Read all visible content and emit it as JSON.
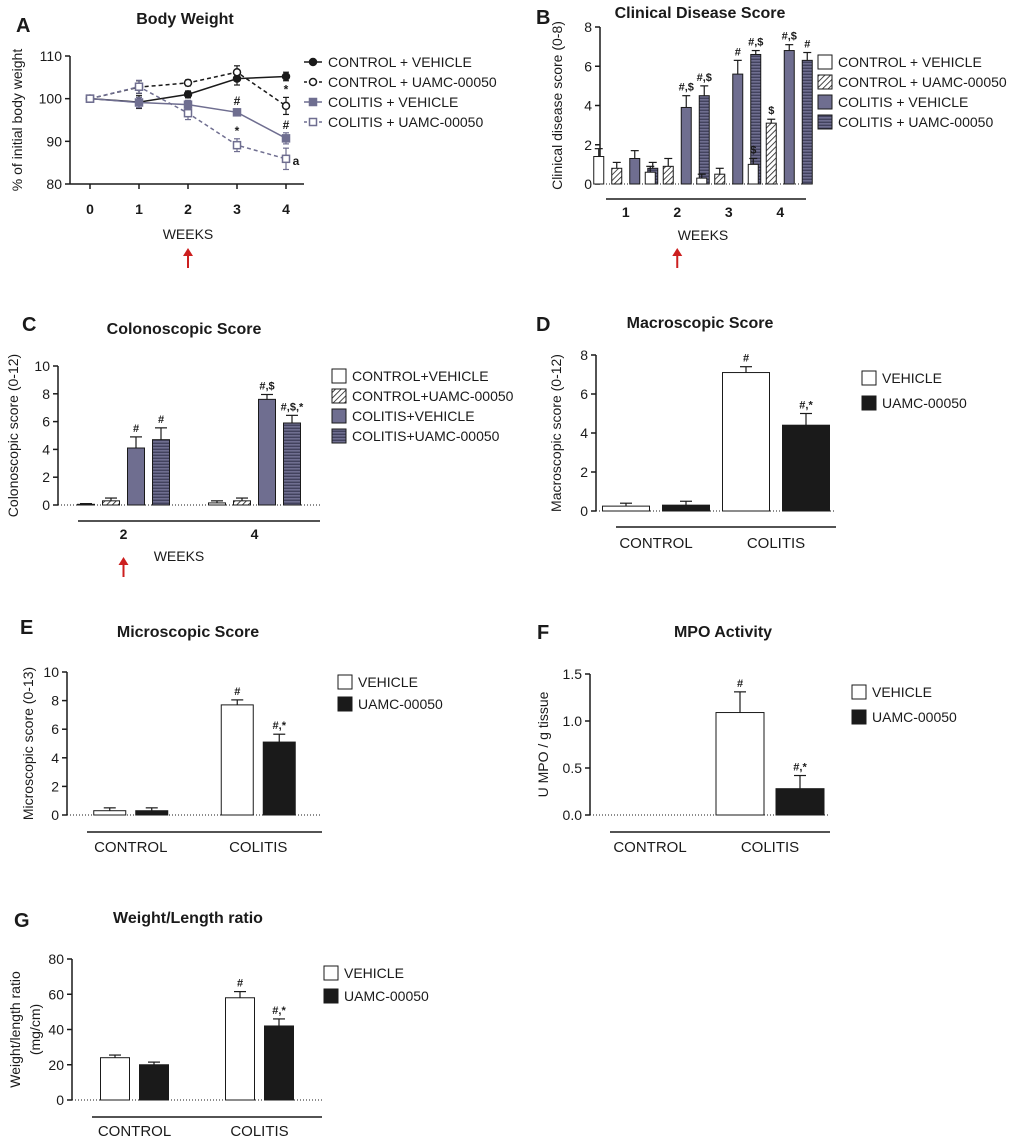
{
  "colors": {
    "colitis": "#6f6e90",
    "black": "#1a1a1a",
    "arrow": "#cc1f1f"
  },
  "chart_data": [
    {
      "id": "A",
      "type": "line",
      "letter": "A",
      "title": "Body Weight",
      "ylabel": "% of initial body weight",
      "xlabel": "WEEKS",
      "x": [
        0,
        1,
        2,
        3,
        4
      ],
      "xlim": [
        0,
        4
      ],
      "ylim": [
        80,
        110
      ],
      "yticks": [
        "80",
        "90",
        "100",
        "110"
      ],
      "xticks": [
        "0",
        "1",
        "2",
        "3",
        "4"
      ],
      "series": [
        {
          "name": "CONTROL + VEHICLE",
          "values": [
            100,
            99.2,
            101,
            104.7,
            105.2
          ],
          "err": [
            0.4,
            1.5,
            0.8,
            1.5,
            1.0
          ],
          "marker": "filled-circle",
          "line": "solid",
          "color": "#1a1a1a",
          "ann": [
            "",
            "",
            "",
            "",
            ""
          ]
        },
        {
          "name": "CONTROL + UAMC-00050",
          "values": [
            100,
            102.7,
            103.7,
            106.2,
            98.3
          ],
          "err": [
            0.4,
            1.5,
            0.7,
            1.5,
            2.0
          ],
          "marker": "open-circle",
          "line": "dashed",
          "color": "#1a1a1a",
          "ann": [
            "",
            "",
            "",
            "",
            "*"
          ]
        },
        {
          "name": "COLITIS + VEHICLE",
          "values": [
            100,
            99.1,
            98.6,
            96.8,
            90.7
          ],
          "err": [
            0.4,
            1.2,
            1.0,
            0.8,
            1.3
          ],
          "marker": "filled-square",
          "line": "solid",
          "color": "#6f6e90",
          "ann": [
            "",
            "",
            "",
            "#",
            "#"
          ]
        },
        {
          "name": "COLITIS + UAMC-00050",
          "values": [
            100,
            102.8,
            96.6,
            89.1,
            85.9
          ],
          "err": [
            0.4,
            1.5,
            1.5,
            1.5,
            2.5
          ],
          "marker": "open-square",
          "line": "dashed",
          "color": "#6f6e90",
          "ann": [
            "",
            "",
            "",
            "*",
            "a"
          ]
        }
      ],
      "arrow_at": "2"
    },
    {
      "id": "B",
      "type": "bar",
      "letter": "B",
      "title": "Clinical Disease Score",
      "ylabel": "Clinical disease score (0-8)",
      "xlabel": "WEEKS",
      "categories": [
        "1",
        "2",
        "3",
        "4"
      ],
      "ylim": [
        0,
        8
      ],
      "yticks": [
        "0",
        "2",
        "4",
        "6",
        "8"
      ],
      "series": [
        {
          "name": "CONTROL + VEHICLE",
          "style": "white",
          "values": [
            1.4,
            0.6,
            0.3,
            1.0
          ],
          "err": [
            0.4,
            0.3,
            0.2,
            0.3
          ],
          "ann": [
            "",
            "",
            "",
            "$"
          ]
        },
        {
          "name": "CONTROL + UAMC-00050",
          "style": "hatch",
          "values": [
            0.8,
            0.9,
            0.5,
            3.1
          ],
          "err": [
            0.3,
            0.4,
            0.3,
            0.2
          ],
          "ann": [
            "",
            "",
            "",
            "$"
          ]
        },
        {
          "name": "COLITIS + VEHICLE",
          "style": "solid",
          "values": [
            1.3,
            3.9,
            5.6,
            6.8
          ],
          "err": [
            0.4,
            0.6,
            0.7,
            0.3
          ],
          "ann": [
            "",
            "#,$",
            "#",
            "#,$"
          ]
        },
        {
          "name": "COLITIS + UAMC-00050",
          "style": "stripes",
          "values": [
            0.8,
            4.5,
            6.6,
            6.3
          ],
          "err": [
            0.3,
            0.5,
            0.2,
            0.4
          ],
          "ann": [
            "",
            "#,$",
            "#,$",
            "#"
          ]
        }
      ],
      "arrow_at": "2"
    },
    {
      "id": "C",
      "type": "bar",
      "letter": "C",
      "title": "Colonoscopic Score",
      "ylabel": "Colonoscopic score (0-12)",
      "xlabel": "WEEKS",
      "categories": [
        "2",
        "4"
      ],
      "ylim": [
        0,
        10
      ],
      "yticks": [
        "0",
        "2",
        "4",
        "6",
        "8",
        "10"
      ],
      "series": [
        {
          "name": "CONTROL+VEHICLE",
          "style": "white",
          "values": [
            0.05,
            0.15
          ],
          "err": [
            0.05,
            0.15
          ],
          "ann": [
            "",
            ""
          ]
        },
        {
          "name": "CONTROL+UAMC-00050",
          "style": "hatch",
          "values": [
            0.3,
            0.3
          ],
          "err": [
            0.2,
            0.2
          ],
          "ann": [
            "",
            ""
          ]
        },
        {
          "name": "COLITIS+VEHICLE",
          "style": "solid",
          "values": [
            4.1,
            7.6
          ],
          "err": [
            0.8,
            0.35
          ],
          "ann": [
            "#",
            "#,$"
          ]
        },
        {
          "name": "COLITIS+UAMC-00050",
          "style": "stripes",
          "values": [
            4.7,
            5.9
          ],
          "err": [
            0.85,
            0.55
          ],
          "ann": [
            "#",
            "#,$,*"
          ]
        }
      ],
      "arrow_at": "2"
    },
    {
      "id": "D",
      "type": "bar",
      "letter": "D",
      "title": "Macroscopic Score",
      "ylabel": "Macroscopic score (0-12)",
      "xlabel": "",
      "categories": [
        "CONTROL",
        "COLITIS"
      ],
      "ylim": [
        0,
        8
      ],
      "yticks": [
        "0",
        "2",
        "4",
        "6",
        "8"
      ],
      "series": [
        {
          "name": "VEHICLE",
          "style": "white",
          "values": [
            0.25,
            7.1
          ],
          "err": [
            0.15,
            0.3
          ],
          "ann": [
            "",
            "#"
          ]
        },
        {
          "name": "UAMC-00050",
          "style": "black",
          "values": [
            0.3,
            4.4
          ],
          "err": [
            0.2,
            0.6
          ],
          "ann": [
            "",
            "#,*"
          ]
        }
      ]
    },
    {
      "id": "E",
      "type": "bar",
      "letter": "E",
      "title": "Microscopic Score",
      "ylabel": "Microscopic score (0-13)",
      "xlabel": "",
      "categories": [
        "CONTROL",
        "COLITIS"
      ],
      "ylim": [
        0,
        10
      ],
      "yticks": [
        "0",
        "2",
        "4",
        "6",
        "8",
        "10"
      ],
      "series": [
        {
          "name": "VEHICLE",
          "style": "white",
          "values": [
            0.3,
            7.7
          ],
          "err": [
            0.2,
            0.35
          ],
          "ann": [
            "",
            "#"
          ]
        },
        {
          "name": "UAMC-00050",
          "style": "black",
          "values": [
            0.3,
            5.1
          ],
          "err": [
            0.2,
            0.55
          ],
          "ann": [
            "",
            "#,*"
          ]
        }
      ]
    },
    {
      "id": "F",
      "type": "bar",
      "letter": "F",
      "title": "MPO Activity",
      "ylabel": "U MPO / g tissue",
      "xlabel": "",
      "categories": [
        "CONTROL",
        "COLITIS"
      ],
      "ylim": [
        0,
        1.5
      ],
      "yticks": [
        "0.0",
        "0.5",
        "1.0",
        "1.5"
      ],
      "series": [
        {
          "name": "VEHICLE",
          "style": "white",
          "values": [
            0,
            1.09
          ],
          "err": [
            0,
            0.22
          ],
          "ann": [
            "",
            "#"
          ]
        },
        {
          "name": "UAMC-00050",
          "style": "black",
          "values": [
            0,
            0.28
          ],
          "err": [
            0,
            0.14
          ],
          "ann": [
            "",
            "#,*"
          ]
        }
      ]
    },
    {
      "id": "G",
      "type": "bar",
      "letter": "G",
      "title": "Weight/Length ratio",
      "ylabel": "Weight/length ratio",
      "ylabel2": "(mg/cm)",
      "xlabel": "",
      "categories": [
        "CONTROL",
        "COLITIS"
      ],
      "ylim": [
        0,
        80
      ],
      "yticks": [
        "0",
        "20",
        "40",
        "60",
        "80"
      ],
      "series": [
        {
          "name": "VEHICLE",
          "style": "white",
          "values": [
            24,
            58
          ],
          "err": [
            1.5,
            3.5
          ],
          "ann": [
            "",
            "#"
          ]
        },
        {
          "name": "UAMC-00050",
          "style": "black",
          "values": [
            20,
            42
          ],
          "err": [
            1.5,
            4
          ],
          "ann": [
            "",
            "#,*"
          ]
        }
      ]
    }
  ]
}
